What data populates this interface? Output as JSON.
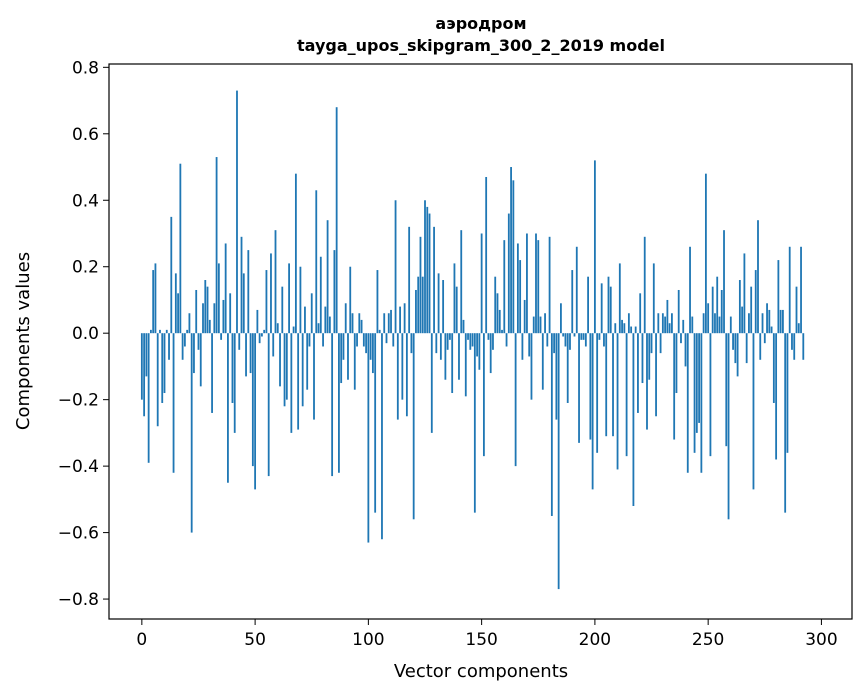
{
  "chart_data": {
    "type": "bar",
    "title": "аэродром",
    "subtitle": "tayga_upos_skipgram_300_2_2019 model",
    "xlabel": "Vector components",
    "ylabel": "Components values",
    "xlim": [
      -14.5,
      313.5
    ],
    "ylim": [
      -0.86,
      0.81
    ],
    "xticks": [
      0,
      50,
      100,
      150,
      200,
      250,
      300
    ],
    "xtick_labels": [
      "0",
      "50",
      "100",
      "150",
      "200",
      "250",
      "300"
    ],
    "yticks": [
      0.8,
      0.6,
      0.4,
      0.2,
      0.0,
      -0.2,
      -0.4,
      -0.6,
      -0.8
    ],
    "ytick_labels": [
      "0.8",
      "0.6",
      "0.4",
      "0.2",
      "0.0",
      "−0.2",
      "−0.4",
      "−0.6",
      "−0.8"
    ],
    "bar_color": "#1f77b4",
    "grid": false,
    "legend": "none",
    "values": [
      -0.2,
      -0.25,
      -0.13,
      -0.39,
      0.01,
      0.19,
      0.21,
      -0.28,
      0.01,
      -0.21,
      -0.18,
      0.01,
      -0.08,
      0.35,
      -0.42,
      0.18,
      0.12,
      0.51,
      -0.08,
      -0.04,
      0.01,
      0.06,
      -0.6,
      -0.12,
      0.13,
      -0.05,
      -0.16,
      0.09,
      0.16,
      0.14,
      0.04,
      -0.24,
      0.09,
      0.53,
      0.21,
      -0.02,
      0.1,
      0.27,
      -0.45,
      0.12,
      -0.21,
      -0.3,
      0.73,
      -0.05,
      0.29,
      0.18,
      -0.13,
      0.25,
      -0.12,
      -0.4,
      -0.47,
      0.07,
      -0.03,
      -0.01,
      0.01,
      0.19,
      -0.43,
      0.24,
      -0.07,
      0.31,
      0.03,
      -0.16,
      0.14,
      -0.22,
      -0.2,
      0.21,
      -0.3,
      0.02,
      0.48,
      -0.29,
      0.2,
      -0.22,
      0.08,
      -0.17,
      -0.04,
      0.12,
      -0.26,
      0.43,
      0.03,
      0.23,
      -0.04,
      0.08,
      0.34,
      0.05,
      -0.43,
      0.25,
      0.68,
      -0.42,
      -0.15,
      -0.08,
      0.09,
      -0.14,
      0.2,
      0.06,
      -0.17,
      -0.04,
      0.06,
      0.04,
      -0.04,
      -0.06,
      -0.63,
      -0.08,
      -0.12,
      -0.54,
      0.19,
      0.01,
      -0.62,
      0.06,
      -0.03,
      0.06,
      0.07,
      -0.04,
      0.4,
      -0.26,
      0.08,
      -0.2,
      0.09,
      -0.25,
      0.32,
      -0.06,
      -0.56,
      0.13,
      0.17,
      0.29,
      0.17,
      0.4,
      0.38,
      0.36,
      -0.3,
      0.32,
      -0.06,
      0.18,
      -0.08,
      0.16,
      -0.14,
      -0.05,
      -0.02,
      -0.18,
      0.21,
      0.14,
      -0.14,
      0.31,
      0.04,
      -0.19,
      -0.02,
      -0.05,
      -0.04,
      -0.54,
      -0.07,
      -0.11,
      0.3,
      -0.37,
      0.47,
      -0.02,
      -0.12,
      -0.05,
      0.17,
      0.12,
      0.07,
      0.01,
      0.28,
      -0.04,
      0.36,
      0.5,
      0.46,
      -0.4,
      0.27,
      0.22,
      -0.08,
      0.1,
      0.3,
      -0.07,
      -0.2,
      0.05,
      0.3,
      0.28,
      0.05,
      -0.17,
      0.06,
      -0.04,
      0.29,
      -0.55,
      -0.06,
      -0.26,
      -0.77,
      0.09,
      -0.01,
      -0.04,
      -0.21,
      -0.05,
      0.19,
      -0.01,
      0.26,
      -0.33,
      -0.02,
      -0.02,
      -0.04,
      0.17,
      -0.32,
      -0.47,
      0.52,
      -0.36,
      -0.02,
      0.15,
      -0.04,
      -0.31,
      0.17,
      0.14,
      -0.31,
      0.03,
      -0.41,
      0.21,
      0.04,
      0.03,
      -0.37,
      0.06,
      0.02,
      -0.52,
      0.02,
      -0.24,
      0.12,
      -0.15,
      0.29,
      -0.29,
      -0.14,
      -0.06,
      0.21,
      -0.25,
      0.06,
      -0.06,
      0.06,
      0.05,
      0.1,
      0.03,
      0.06,
      -0.32,
      -0.18,
      0.13,
      -0.03,
      0.04,
      -0.1,
      -0.42,
      0.26,
      0.05,
      -0.36,
      -0.3,
      -0.27,
      -0.42,
      0.06,
      0.48,
      0.09,
      -0.37,
      0.14,
      0.06,
      0.17,
      0.05,
      0.13,
      0.31,
      -0.34,
      -0.56,
      0.05,
      -0.05,
      -0.09,
      -0.13,
      0.16,
      0.08,
      0.24,
      -0.09,
      0.06,
      0.14,
      -0.47,
      0.19,
      0.34,
      -0.08,
      0.06,
      -0.03,
      0.09,
      0.07,
      0.02,
      -0.21,
      -0.38,
      0.22,
      0.07,
      0.07,
      -0.54,
      -0.36,
      0.26,
      -0.05,
      -0.08,
      0.14,
      0.03,
      0.26,
      -0.08
    ]
  }
}
